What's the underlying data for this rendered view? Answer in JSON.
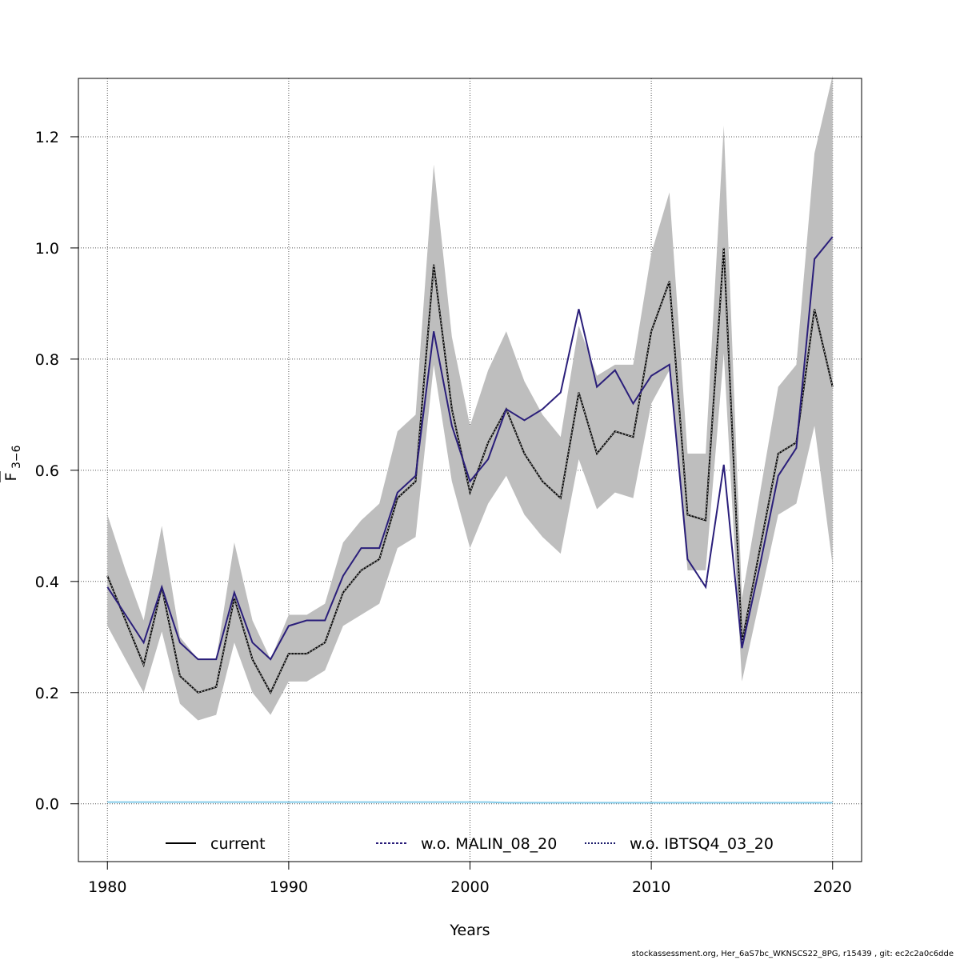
{
  "chart_data": {
    "type": "line",
    "xlabel": "Years",
    "ylabel_main": "F",
    "ylabel_sub": "3−6",
    "xlim": [
      1978.4,
      2021.6
    ],
    "ylim": [
      -0.104,
      1.305
    ],
    "x_ticks": [
      1980,
      1990,
      2000,
      2010,
      2020
    ],
    "y_ticks": [
      0.0,
      0.2,
      0.4,
      0.6,
      0.8,
      1.0,
      1.2
    ],
    "x_tick_labels": [
      "1980",
      "1990",
      "2000",
      "2010",
      "2020"
    ],
    "y_tick_labels": [
      "0.0",
      "0.2",
      "0.4",
      "0.6",
      "0.8",
      "1.0",
      "1.2"
    ],
    "grid": true,
    "legend_position": "bottom",
    "x": [
      1980,
      1981,
      1982,
      1983,
      1984,
      1985,
      1986,
      1987,
      1988,
      1989,
      1990,
      1991,
      1992,
      1993,
      1994,
      1995,
      1996,
      1997,
      1998,
      1999,
      2000,
      2001,
      2002,
      2003,
      2004,
      2005,
      2006,
      2007,
      2008,
      2009,
      2010,
      2011,
      2012,
      2013,
      2014,
      2015,
      2016,
      2017,
      2018,
      2019,
      2020
    ],
    "confidence_band": {
      "color": "#bebebe",
      "upper": [
        0.52,
        0.42,
        0.33,
        0.5,
        0.3,
        0.26,
        0.26,
        0.47,
        0.33,
        0.26,
        0.34,
        0.34,
        0.36,
        0.47,
        0.51,
        0.54,
        0.67,
        0.7,
        1.15,
        0.84,
        0.68,
        0.78,
        0.85,
        0.76,
        0.7,
        0.66,
        0.86,
        0.77,
        0.79,
        0.79,
        0.99,
        1.1,
        0.63,
        0.63,
        1.22,
        0.37,
        0.56,
        0.75,
        0.79,
        1.17,
        1.31
      ],
      "lower": [
        0.32,
        0.26,
        0.2,
        0.31,
        0.18,
        0.15,
        0.16,
        0.29,
        0.2,
        0.16,
        0.22,
        0.22,
        0.24,
        0.32,
        0.34,
        0.36,
        0.46,
        0.48,
        0.79,
        0.58,
        0.46,
        0.54,
        0.59,
        0.52,
        0.48,
        0.45,
        0.62,
        0.53,
        0.56,
        0.55,
        0.72,
        0.78,
        0.42,
        0.42,
        0.81,
        0.22,
        0.37,
        0.52,
        0.54,
        0.68,
        0.43
      ]
    },
    "series": [
      {
        "name": "current",
        "color": "#000000",
        "style": "solid",
        "values": [
          0.41,
          0.33,
          0.25,
          0.39,
          0.23,
          0.2,
          0.21,
          0.37,
          0.26,
          0.2,
          0.27,
          0.27,
          0.29,
          0.38,
          0.42,
          0.44,
          0.55,
          0.58,
          0.97,
          0.71,
          0.56,
          0.65,
          0.71,
          0.63,
          0.58,
          0.55,
          0.74,
          0.63,
          0.67,
          0.66,
          0.85,
          0.94,
          0.52,
          0.51,
          1.0,
          0.29,
          0.46,
          0.63,
          0.65,
          0.89,
          0.75
        ]
      },
      {
        "name": "w.o. MALIN_08_20",
        "color": "#2a1e7a",
        "style": "solid",
        "values": [
          0.39,
          0.34,
          0.29,
          0.39,
          0.29,
          0.26,
          0.26,
          0.38,
          0.29,
          0.26,
          0.32,
          0.33,
          0.33,
          0.41,
          0.46,
          0.46,
          0.56,
          0.59,
          0.85,
          0.68,
          0.58,
          0.62,
          0.71,
          0.69,
          0.71,
          0.74,
          0.89,
          0.75,
          0.78,
          0.72,
          0.77,
          0.79,
          0.44,
          0.39,
          0.61,
          0.28,
          0.43,
          0.59,
          0.64,
          0.98,
          1.02
        ]
      },
      {
        "name": "w.o. IBTSQ4_03_20",
        "color": "#87ceeb",
        "style": "solid",
        "values": [
          0.003,
          0.003,
          0.003,
          0.003,
          0.003,
          0.003,
          0.003,
          0.003,
          0.003,
          0.003,
          0.003,
          0.003,
          0.003,
          0.003,
          0.003,
          0.003,
          0.003,
          0.003,
          0.003,
          0.003,
          0.003,
          0.003,
          0.002,
          0.002,
          0.002,
          0.002,
          0.002,
          0.002,
          0.002,
          0.002,
          0.002,
          0.002,
          0.002,
          0.002,
          0.002,
          0.002,
          0.002,
          0.002,
          0.002,
          0.002,
          0.002
        ]
      }
    ],
    "legend": [
      {
        "label": "current",
        "color": "#000000",
        "dash": ""
      },
      {
        "label": "w.o. MALIN_08_20",
        "color": "#2a1e7a",
        "dash": "3,2"
      },
      {
        "label": "w.o. IBTSQ4_03_20",
        "color": "#1a1a6a",
        "dash": "2,2"
      }
    ]
  },
  "footer": "stockassessment.org, Her_6aS7bc_WKNSCS22_8PG, r15439 , git: ec2c2a0c6dde"
}
